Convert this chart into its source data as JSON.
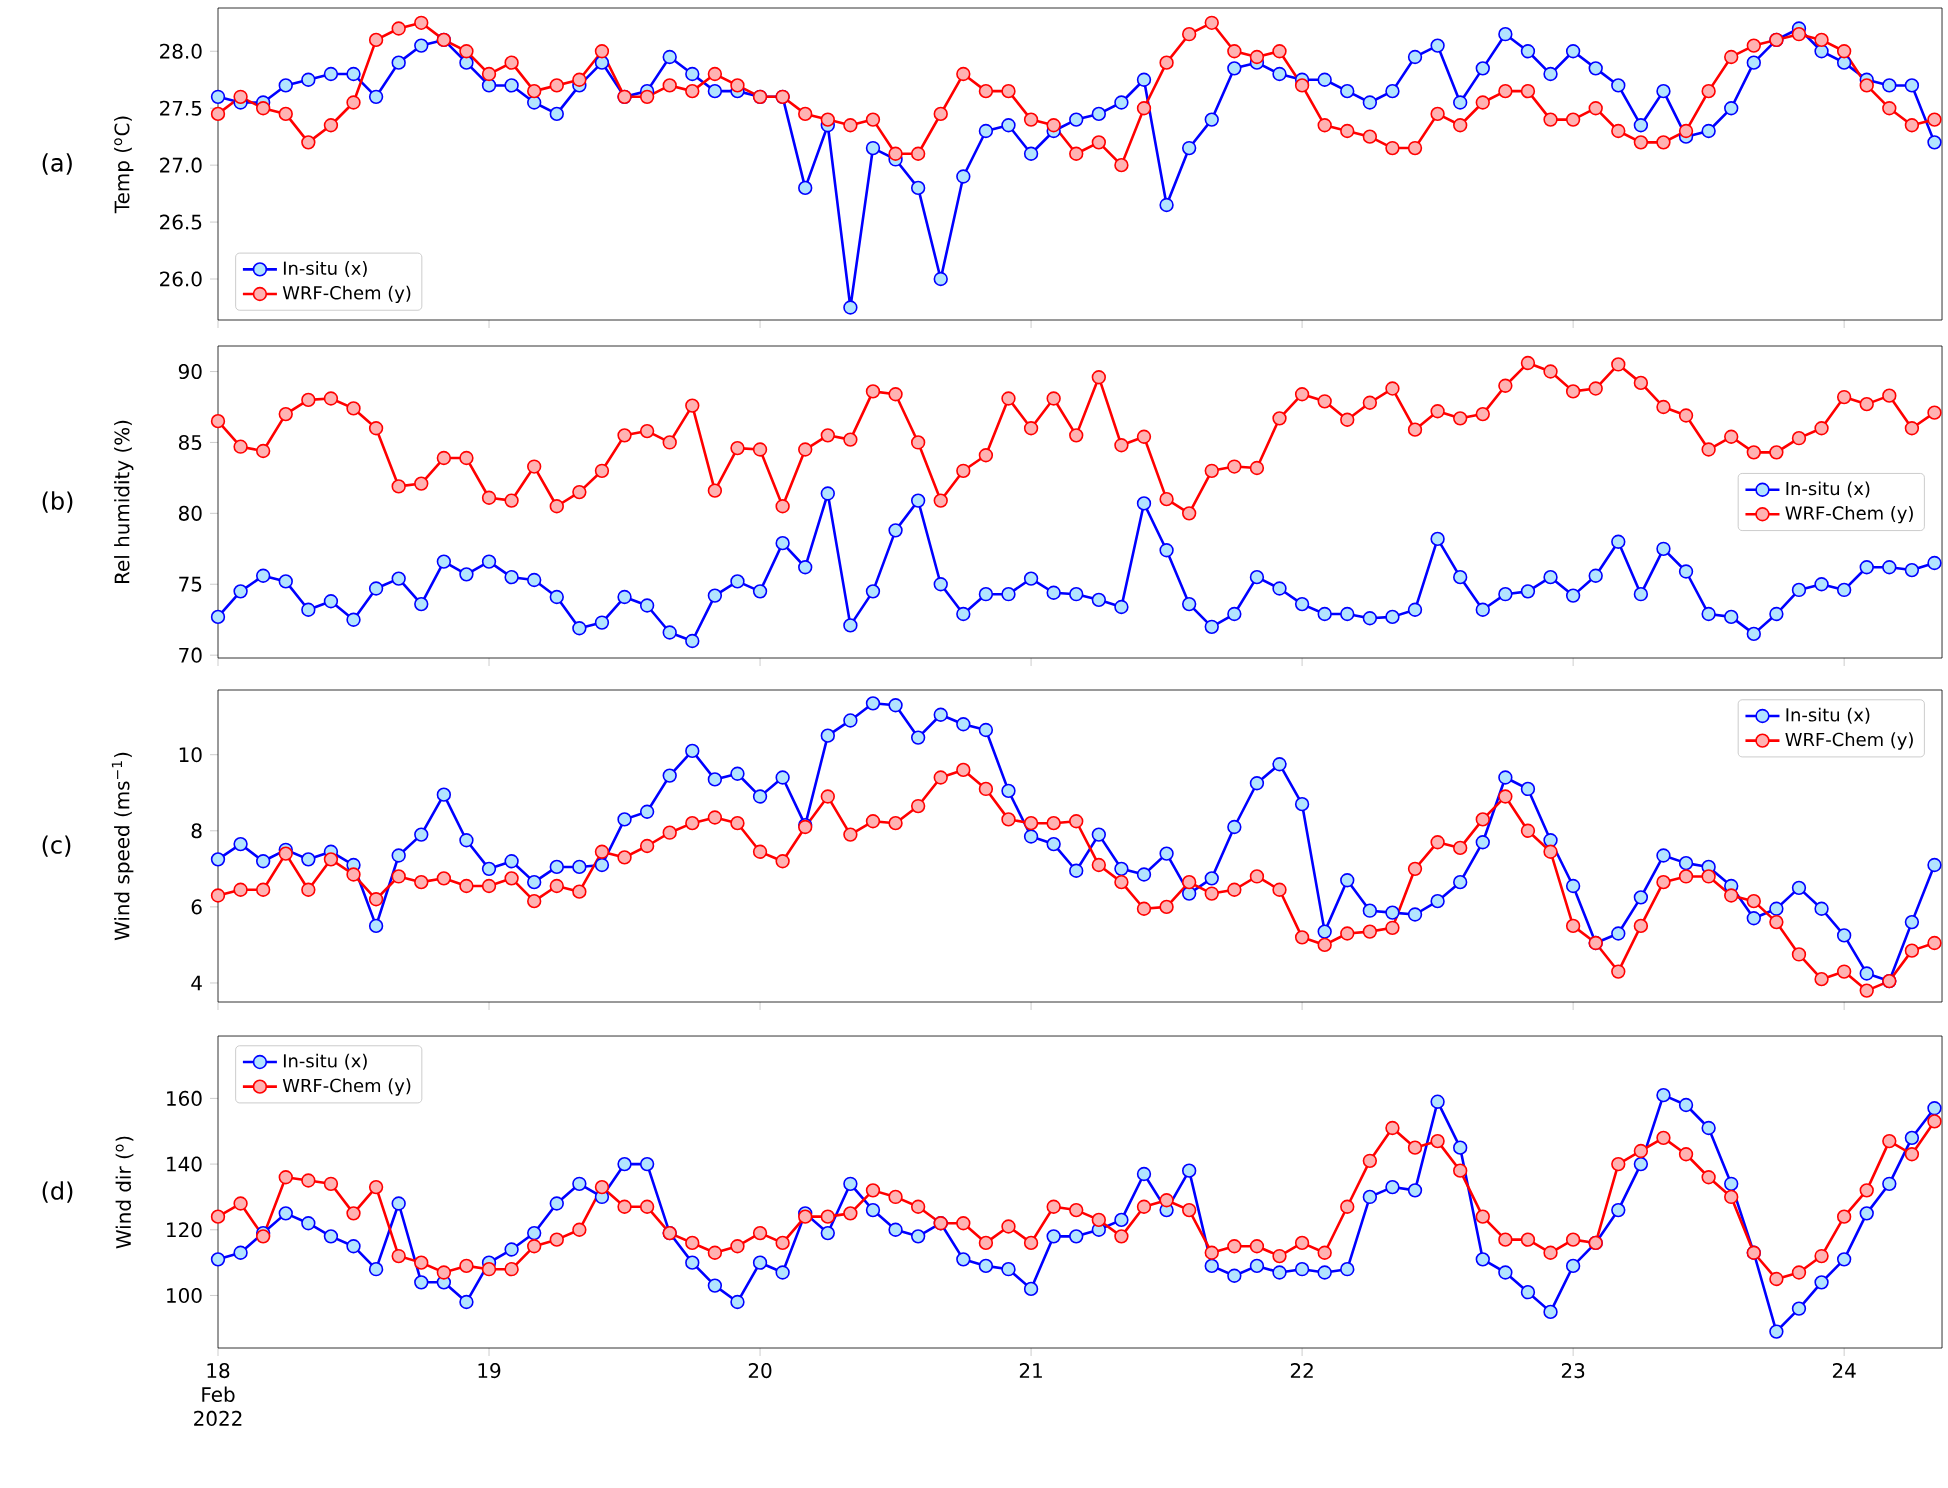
{
  "chart_data": [
    {
      "type": "line",
      "ylabel": "Temp ($^{o}$C)",
      "annotations": [
        "(a)"
      ],
      "marker": "circle",
      "legend": "bottom left",
      "tick_labels": "y",
      "x": [
        "2022-02-18T00:00",
        "2022-02-18T02:00",
        "2022-02-18T04:00",
        "2022-02-18T06:00",
        "2022-02-18T08:00",
        "2022-02-18T10:00",
        "2022-02-18T12:00",
        "2022-02-18T14:00",
        "2022-02-18T16:00",
        "2022-02-18T18:00",
        "2022-02-18T20:00",
        "2022-02-18T22:00",
        "2022-02-19T00:00",
        "2022-02-19T02:00",
        "2022-02-19T04:00",
        "2022-02-19T06:00",
        "2022-02-19T08:00",
        "2022-02-19T10:00",
        "2022-02-19T12:00",
        "2022-02-19T14:00",
        "2022-02-19T16:00",
        "2022-02-19T18:00",
        "2022-02-19T20:00",
        "2022-02-19T22:00",
        "2022-02-20T00:00",
        "2022-02-20T02:00",
        "2022-02-20T04:00",
        "2022-02-20T06:00",
        "2022-02-20T08:00",
        "2022-02-20T10:00",
        "2022-02-20T12:00",
        "2022-02-20T14:00",
        "2022-02-20T16:00",
        "2022-02-20T18:00",
        "2022-02-20T20:00",
        "2022-02-20T22:00",
        "2022-02-21T00:00",
        "2022-02-21T02:00",
        "2022-02-21T04:00",
        "2022-02-21T06:00",
        "2022-02-21T08:00",
        "2022-02-21T10:00",
        "2022-02-21T12:00",
        "2022-02-21T14:00",
        "2022-02-21T16:00",
        "2022-02-21T18:00",
        "2022-02-21T20:00",
        "2022-02-21T22:00",
        "2022-02-22T00:00",
        "2022-02-22T02:00",
        "2022-02-22T04:00",
        "2022-02-22T06:00",
        "2022-02-22T08:00",
        "2022-02-22T10:00",
        "2022-02-22T12:00",
        "2022-02-22T14:00",
        "2022-02-22T16:00",
        "2022-02-22T18:00",
        "2022-02-22T20:00",
        "2022-02-22T22:00",
        "2022-02-23T00:00",
        "2022-02-23T02:00",
        "2022-02-23T04:00",
        "2022-02-23T06:00",
        "2022-02-23T08:00",
        "2022-02-23T10:00",
        "2022-02-23T12:00",
        "2022-02-23T14:00",
        "2022-02-23T16:00",
        "2022-02-23T18:00",
        "2022-02-23T20:00",
        "2022-02-23T22:00",
        "2022-02-24T00:00",
        "2022-02-24T02:00",
        "2022-02-24T04:00",
        "2022-02-24T06:00",
        "2022-02-24T08:00"
      ],
      "xlim": [
        "2022-02-18T00:00",
        "2022-02-24T08:40"
      ],
      "xticks": [
        "2022-02-18",
        "2022-02-19",
        "2022-02-20",
        "2022-02-21",
        "2022-02-22",
        "2022-02-23",
        "2022-02-24"
      ],
      "ylim": [
        25.64,
        28.38
      ],
      "yticks": [
        {
          "value": 26,
          "label": "26.0"
        },
        26.5,
        {
          "value": 27,
          "label": "27.0"
        },
        27.5,
        {
          "value": 28,
          "label": "28.0"
        }
      ],
      "series": [
        {
          "name": "In-situ (x)",
          "color": "#0000ff",
          "values": [
            27.6,
            27.55,
            27.55,
            27.7,
            27.75,
            27.8,
            27.8,
            27.6,
            27.9,
            28.05,
            28.1,
            27.9,
            27.7,
            27.7,
            27.55,
            27.45,
            27.7,
            27.9,
            27.6,
            27.65,
            27.95,
            27.8,
            27.65,
            27.65,
            27.6,
            27.6,
            26.8,
            27.35,
            25.75,
            27.15,
            27.05,
            26.8,
            26.0,
            26.9,
            27.3,
            27.35,
            27.1,
            27.3,
            27.4,
            27.45,
            27.55,
            27.75,
            26.65,
            27.15,
            27.4,
            27.85,
            27.9,
            27.8,
            27.75,
            27.75,
            27.65,
            27.55,
            27.65,
            27.95,
            28.05,
            27.55,
            27.85,
            28.15,
            28.0,
            27.8,
            28.0,
            27.85,
            27.7,
            27.35,
            27.65,
            27.25,
            27.3,
            27.5,
            27.9,
            28.1,
            28.2,
            28.0,
            27.9,
            27.75,
            27.7,
            27.7,
            27.2
          ]
        },
        {
          "name": "WRF-Chem (y)",
          "color": "#ff0000",
          "values": [
            27.45,
            27.6,
            27.5,
            27.45,
            27.2,
            27.35,
            27.55,
            28.1,
            28.2,
            28.25,
            28.1,
            28.0,
            27.8,
            27.9,
            27.65,
            27.7,
            27.75,
            28.0,
            27.6,
            27.6,
            27.7,
            27.65,
            27.8,
            27.7,
            27.6,
            27.6,
            27.45,
            27.4,
            27.35,
            27.4,
            27.1,
            27.1,
            27.45,
            27.8,
            27.65,
            27.65,
            27.4,
            27.35,
            27.1,
            27.2,
            27.0,
            27.5,
            27.9,
            28.15,
            28.25,
            28.0,
            27.95,
            28.0,
            27.7,
            27.35,
            27.3,
            27.25,
            27.15,
            27.15,
            27.45,
            27.35,
            27.55,
            27.65,
            27.65,
            27.4,
            27.4,
            27.5,
            27.3,
            27.2,
            27.2,
            27.3,
            27.65,
            27.95,
            28.05,
            28.1,
            28.15,
            28.1,
            28.0,
            27.7,
            27.5,
            27.35,
            27.4
          ]
        }
      ]
    },
    {
      "type": "line",
      "ylabel": "Rel humidity (%)",
      "annotations": [
        "(b)"
      ],
      "marker": "circle",
      "legend": "right",
      "tick_labels": "y",
      "x": [
        "2022-02-18T00:00",
        "2022-02-18T02:00",
        "2022-02-18T04:00",
        "2022-02-18T06:00",
        "2022-02-18T08:00",
        "2022-02-18T10:00",
        "2022-02-18T12:00",
        "2022-02-18T14:00",
        "2022-02-18T16:00",
        "2022-02-18T18:00",
        "2022-02-18T20:00",
        "2022-02-18T22:00",
        "2022-02-19T00:00",
        "2022-02-19T02:00",
        "2022-02-19T04:00",
        "2022-02-19T06:00",
        "2022-02-19T08:00",
        "2022-02-19T10:00",
        "2022-02-19T12:00",
        "2022-02-19T14:00",
        "2022-02-19T16:00",
        "2022-02-19T18:00",
        "2022-02-19T20:00",
        "2022-02-19T22:00",
        "2022-02-20T00:00",
        "2022-02-20T02:00",
        "2022-02-20T04:00",
        "2022-02-20T06:00",
        "2022-02-20T08:00",
        "2022-02-20T10:00",
        "2022-02-20T12:00",
        "2022-02-20T14:00",
        "2022-02-20T16:00",
        "2022-02-20T18:00",
        "2022-02-20T20:00",
        "2022-02-20T22:00",
        "2022-02-21T00:00",
        "2022-02-21T02:00",
        "2022-02-21T04:00",
        "2022-02-21T06:00",
        "2022-02-21T08:00",
        "2022-02-21T10:00",
        "2022-02-21T12:00",
        "2022-02-21T14:00",
        "2022-02-21T16:00",
        "2022-02-21T18:00",
        "2022-02-21T20:00",
        "2022-02-21T22:00",
        "2022-02-22T00:00",
        "2022-02-22T02:00",
        "2022-02-22T04:00",
        "2022-02-22T06:00",
        "2022-02-22T08:00",
        "2022-02-22T10:00",
        "2022-02-22T12:00",
        "2022-02-22T14:00",
        "2022-02-22T16:00",
        "2022-02-22T18:00",
        "2022-02-22T20:00",
        "2022-02-22T22:00",
        "2022-02-23T00:00",
        "2022-02-23T02:00",
        "2022-02-23T04:00",
        "2022-02-23T06:00",
        "2022-02-23T08:00",
        "2022-02-23T10:00",
        "2022-02-23T12:00",
        "2022-02-23T14:00",
        "2022-02-23T16:00",
        "2022-02-23T18:00",
        "2022-02-23T20:00",
        "2022-02-23T22:00",
        "2022-02-24T00:00",
        "2022-02-24T02:00",
        "2022-02-24T04:00",
        "2022-02-24T06:00",
        "2022-02-24T08:00"
      ],
      "xlim": [
        "2022-02-18T00:00",
        "2022-02-24T08:40"
      ],
      "xticks": [
        "2022-02-18",
        "2022-02-19",
        "2022-02-20",
        "2022-02-21",
        "2022-02-22",
        "2022-02-23",
        "2022-02-24"
      ],
      "ylim": [
        69.8,
        91.8
      ],
      "yticks": [
        70,
        75,
        80,
        85,
        90
      ],
      "series": [
        {
          "name": "In-situ (x)",
          "color": "#0000ff",
          "values": [
            72.7,
            74.5,
            75.6,
            75.2,
            73.2,
            73.8,
            72.5,
            74.7,
            75.4,
            73.6,
            76.6,
            75.7,
            76.6,
            75.5,
            75.3,
            74.1,
            71.9,
            72.3,
            74.1,
            73.5,
            71.6,
            71.0,
            74.2,
            75.2,
            74.5,
            77.9,
            76.2,
            81.4,
            72.1,
            74.5,
            78.8,
            80.9,
            75.0,
            72.9,
            74.3,
            74.3,
            75.4,
            74.4,
            74.3,
            73.9,
            73.4,
            80.7,
            77.4,
            73.6,
            72.0,
            72.9,
            75.5,
            74.7,
            73.6,
            72.9,
            72.9,
            72.6,
            72.7,
            73.2,
            78.2,
            75.5,
            73.2,
            74.3,
            74.5,
            75.5,
            74.2,
            75.6,
            78.0,
            74.3,
            77.5,
            75.9,
            72.9,
            72.7,
            71.5,
            72.9,
            74.6,
            75.0,
            74.6,
            76.2,
            76.2,
            76.0,
            76.5
          ]
        },
        {
          "name": "WRF-Chem (y)",
          "color": "#ff0000",
          "values": [
            86.5,
            84.7,
            84.4,
            87.0,
            88.0,
            88.1,
            87.4,
            86.0,
            81.9,
            82.1,
            83.9,
            83.9,
            81.1,
            80.9,
            83.3,
            80.5,
            81.5,
            83.0,
            85.5,
            85.8,
            85.0,
            87.6,
            81.6,
            84.6,
            84.5,
            80.5,
            84.5,
            85.5,
            85.2,
            88.6,
            88.4,
            85.0,
            80.9,
            83.0,
            84.1,
            88.1,
            86.0,
            88.1,
            85.5,
            89.6,
            84.8,
            85.4,
            81.0,
            80.0,
            83.0,
            83.3,
            83.2,
            86.7,
            88.4,
            87.9,
            86.6,
            87.8,
            88.8,
            85.9,
            87.2,
            86.7,
            87.0,
            89.0,
            90.6,
            90.0,
            88.6,
            88.8,
            90.5,
            89.2,
            87.5,
            86.9,
            84.5,
            85.4,
            84.3,
            84.3,
            85.3,
            86.0,
            88.2,
            87.7,
            88.3,
            86.0,
            87.1
          ]
        }
      ]
    },
    {
      "type": "line",
      "ylabel": "Wind speed (ms$^{−1}$)",
      "annotations": [
        "(c)"
      ],
      "marker": "circle",
      "legend": "top right",
      "tick_labels": "y",
      "x": [
        "2022-02-18T00:00",
        "2022-02-18T02:00",
        "2022-02-18T04:00",
        "2022-02-18T06:00",
        "2022-02-18T08:00",
        "2022-02-18T10:00",
        "2022-02-18T12:00",
        "2022-02-18T14:00",
        "2022-02-18T16:00",
        "2022-02-18T18:00",
        "2022-02-18T20:00",
        "2022-02-18T22:00",
        "2022-02-19T00:00",
        "2022-02-19T02:00",
        "2022-02-19T04:00",
        "2022-02-19T06:00",
        "2022-02-19T08:00",
        "2022-02-19T10:00",
        "2022-02-19T12:00",
        "2022-02-19T14:00",
        "2022-02-19T16:00",
        "2022-02-19T18:00",
        "2022-02-19T20:00",
        "2022-02-19T22:00",
        "2022-02-20T00:00",
        "2022-02-20T02:00",
        "2022-02-20T04:00",
        "2022-02-20T06:00",
        "2022-02-20T08:00",
        "2022-02-20T10:00",
        "2022-02-20T12:00",
        "2022-02-20T14:00",
        "2022-02-20T16:00",
        "2022-02-20T18:00",
        "2022-02-20T20:00",
        "2022-02-20T22:00",
        "2022-02-21T00:00",
        "2022-02-21T02:00",
        "2022-02-21T04:00",
        "2022-02-21T06:00",
        "2022-02-21T08:00",
        "2022-02-21T10:00",
        "2022-02-21T12:00",
        "2022-02-21T14:00",
        "2022-02-21T16:00",
        "2022-02-21T18:00",
        "2022-02-21T20:00",
        "2022-02-21T22:00",
        "2022-02-22T00:00",
        "2022-02-22T02:00",
        "2022-02-22T04:00",
        "2022-02-22T06:00",
        "2022-02-22T08:00",
        "2022-02-22T10:00",
        "2022-02-22T12:00",
        "2022-02-22T14:00",
        "2022-02-22T16:00",
        "2022-02-22T18:00",
        "2022-02-22T20:00",
        "2022-02-22T22:00",
        "2022-02-23T00:00",
        "2022-02-23T02:00",
        "2022-02-23T04:00",
        "2022-02-23T06:00",
        "2022-02-23T08:00",
        "2022-02-23T10:00",
        "2022-02-23T12:00",
        "2022-02-23T14:00",
        "2022-02-23T16:00",
        "2022-02-23T18:00",
        "2022-02-23T20:00",
        "2022-02-23T22:00",
        "2022-02-24T00:00",
        "2022-02-24T02:00",
        "2022-02-24T04:00",
        "2022-02-24T06:00",
        "2022-02-24T08:00"
      ],
      "xlim": [
        "2022-02-18T00:00",
        "2022-02-24T08:40"
      ],
      "xticks": [
        "2022-02-18",
        "2022-02-19",
        "2022-02-20",
        "2022-02-21",
        "2022-02-22",
        "2022-02-23",
        "2022-02-24"
      ],
      "ylim": [
        3.5,
        11.7
      ],
      "yticks": [
        4,
        6,
        8,
        10
      ],
      "series": [
        {
          "name": "In-situ (x)",
          "color": "#0000ff",
          "values": [
            7.25,
            7.65,
            7.2,
            7.5,
            7.25,
            7.45,
            7.1,
            5.5,
            7.35,
            7.9,
            8.95,
            7.75,
            7.0,
            7.2,
            6.65,
            7.05,
            7.05,
            7.1,
            8.3,
            8.5,
            9.45,
            10.1,
            9.35,
            9.5,
            8.9,
            9.4,
            8.15,
            10.5,
            10.9,
            11.35,
            11.3,
            10.45,
            11.05,
            10.8,
            10.65,
            9.05,
            7.85,
            7.65,
            6.95,
            7.9,
            7.0,
            6.85,
            7.4,
            6.35,
            6.75,
            8.1,
            9.25,
            9.75,
            8.7,
            5.35,
            6.7,
            5.9,
            5.85,
            5.8,
            6.15,
            6.65,
            7.7,
            9.4,
            9.1,
            7.75,
            6.55,
            5.05,
            5.3,
            6.25,
            7.35,
            7.15,
            7.05,
            6.55,
            5.7,
            5.95,
            6.5,
            5.95,
            5.25,
            4.25,
            4.05,
            5.6,
            7.1
          ]
        },
        {
          "name": "WRF-Chem (y)",
          "color": "#ff0000",
          "values": [
            6.3,
            6.45,
            6.45,
            7.4,
            6.45,
            7.25,
            6.85,
            6.2,
            6.8,
            6.65,
            6.75,
            6.55,
            6.55,
            6.75,
            6.15,
            6.55,
            6.4,
            7.45,
            7.3,
            7.6,
            7.95,
            8.2,
            8.35,
            8.2,
            7.45,
            7.2,
            8.1,
            8.9,
            7.9,
            8.25,
            8.2,
            8.65,
            9.4,
            9.6,
            9.1,
            8.3,
            8.2,
            8.2,
            8.25,
            7.1,
            6.65,
            5.95,
            6.0,
            6.65,
            6.35,
            6.45,
            6.8,
            6.45,
            5.2,
            5.0,
            5.3,
            5.35,
            5.45,
            7.0,
            7.7,
            7.55,
            8.3,
            8.9,
            8.0,
            7.45,
            5.5,
            5.05,
            4.3,
            5.5,
            6.65,
            6.8,
            6.8,
            6.3,
            6.15,
            5.6,
            4.75,
            4.1,
            4.3,
            3.8,
            4.05,
            4.85,
            5.05
          ]
        }
      ]
    },
    {
      "type": "line",
      "ylabel": "Wind dir ($^{o}$)",
      "annotations": [
        "(d)"
      ],
      "marker": "circle",
      "legend": "top left",
      "x": [
        "2022-02-18T00:00",
        "2022-02-18T02:00",
        "2022-02-18T04:00",
        "2022-02-18T06:00",
        "2022-02-18T08:00",
        "2022-02-18T10:00",
        "2022-02-18T12:00",
        "2022-02-18T14:00",
        "2022-02-18T16:00",
        "2022-02-18T18:00",
        "2022-02-18T20:00",
        "2022-02-18T22:00",
        "2022-02-19T00:00",
        "2022-02-19T02:00",
        "2022-02-19T04:00",
        "2022-02-19T06:00",
        "2022-02-19T08:00",
        "2022-02-19T10:00",
        "2022-02-19T12:00",
        "2022-02-19T14:00",
        "2022-02-19T16:00",
        "2022-02-19T18:00",
        "2022-02-19T20:00",
        "2022-02-19T22:00",
        "2022-02-20T00:00",
        "2022-02-20T02:00",
        "2022-02-20T04:00",
        "2022-02-20T06:00",
        "2022-02-20T08:00",
        "2022-02-20T10:00",
        "2022-02-20T12:00",
        "2022-02-20T14:00",
        "2022-02-20T16:00",
        "2022-02-20T18:00",
        "2022-02-20T20:00",
        "2022-02-20T22:00",
        "2022-02-21T00:00",
        "2022-02-21T02:00",
        "2022-02-21T04:00",
        "2022-02-21T06:00",
        "2022-02-21T08:00",
        "2022-02-21T10:00",
        "2022-02-21T12:00",
        "2022-02-21T14:00",
        "2022-02-21T16:00",
        "2022-02-21T18:00",
        "2022-02-21T20:00",
        "2022-02-21T22:00",
        "2022-02-22T00:00",
        "2022-02-22T02:00",
        "2022-02-22T04:00",
        "2022-02-22T06:00",
        "2022-02-22T08:00",
        "2022-02-22T10:00",
        "2022-02-22T12:00",
        "2022-02-22T14:00",
        "2022-02-22T16:00",
        "2022-02-22T18:00",
        "2022-02-22T20:00",
        "2022-02-22T22:00",
        "2022-02-23T00:00",
        "2022-02-23T02:00",
        "2022-02-23T04:00",
        "2022-02-23T06:00",
        "2022-02-23T08:00",
        "2022-02-23T10:00",
        "2022-02-23T12:00",
        "2022-02-23T14:00",
        "2022-02-23T16:00",
        "2022-02-23T18:00",
        "2022-02-23T20:00",
        "2022-02-23T22:00",
        "2022-02-24T00:00",
        "2022-02-24T02:00",
        "2022-02-24T04:00",
        "2022-02-24T06:00",
        "2022-02-24T08:00"
      ],
      "xlim": [
        "2022-02-18T00:00",
        "2022-02-24T08:40"
      ],
      "xticks": [
        {
          "value": "2022-02-18",
          "label": "18 Feb 2022"
        },
        {
          "value": "2022-02-19",
          "label": "19"
        },
        {
          "value": "2022-02-20",
          "label": "20"
        },
        {
          "value": "2022-02-21",
          "label": "21"
        },
        {
          "value": "2022-02-22",
          "label": "22"
        },
        {
          "value": "2022-02-23",
          "label": "23"
        },
        {
          "value": "2022-02-24",
          "label": "24"
        }
      ],
      "ylim": [
        84,
        179
      ],
      "yticks": [
        100,
        120,
        140,
        160
      ],
      "series": [
        {
          "name": "In-situ (x)",
          "color": "#0000ff",
          "values": [
            111,
            113,
            119,
            125,
            122,
            118,
            115,
            108,
            128,
            104,
            104,
            98,
            110,
            114,
            119,
            128,
            134,
            130,
            140,
            140,
            119,
            110,
            103,
            98,
            110,
            107,
            125,
            119,
            134,
            126,
            120,
            118,
            122,
            111,
            109,
            108,
            102,
            118,
            118,
            120,
            123,
            137,
            126,
            138,
            109,
            106,
            109,
            107,
            108,
            107,
            108,
            130,
            133,
            132,
            159,
            145,
            111,
            107,
            101,
            95,
            109,
            116,
            126,
            140,
            161,
            158,
            151,
            134,
            113,
            89,
            96,
            104,
            111,
            125,
            134,
            148,
            157
          ]
        },
        {
          "name": "WRF-Chem (y)",
          "color": "#ff0000",
          "values": [
            124,
            128,
            118,
            136,
            135,
            134,
            125,
            133,
            112,
            110,
            107,
            109,
            108,
            108,
            115,
            117,
            120,
            133,
            127,
            127,
            119,
            116,
            113,
            115,
            119,
            116,
            124,
            124,
            125,
            132,
            130,
            127,
            122,
            122,
            116,
            121,
            116,
            127,
            126,
            123,
            118,
            127,
            129,
            126,
            113,
            115,
            115,
            112,
            116,
            113,
            127,
            141,
            151,
            145,
            147,
            138,
            124,
            117,
            117,
            113,
            117,
            116,
            140,
            144,
            148,
            143,
            136,
            130,
            113,
            105,
            107,
            112,
            124,
            132,
            147,
            143,
            153
          ]
        }
      ]
    }
  ]
}
